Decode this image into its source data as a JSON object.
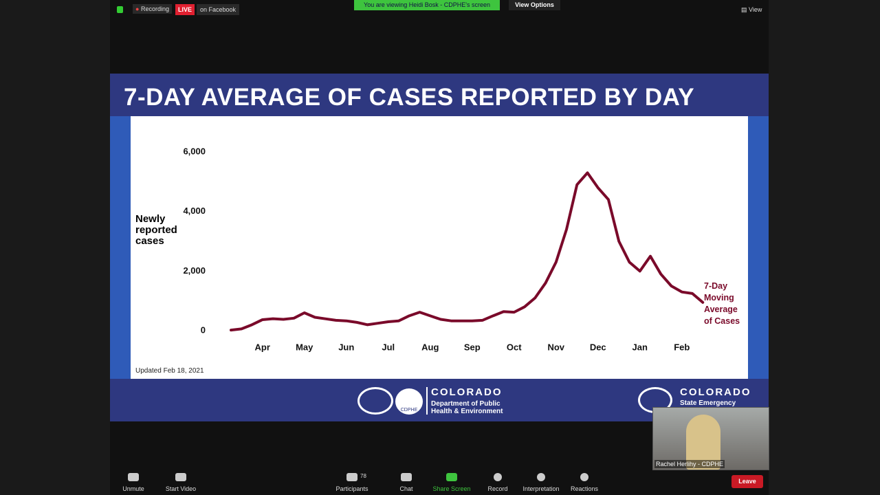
{
  "top_bar": {
    "recording": "Recording",
    "live": "LIVE",
    "live_target": "on Facebook",
    "viewing_banner": "You are viewing Heidi Bosk - CDPHE's screen",
    "view_options": "View Options",
    "view": "View"
  },
  "chart_data": {
    "type": "line",
    "title": "7-DAY AVERAGE OF CASES REPORTED BY DAY",
    "y_label": "Newly reported cases",
    "note": "Updated Feb 18, 2021",
    "categories": [
      null,
      null,
      null,
      "Apr",
      null,
      null,
      null,
      "May",
      null,
      null,
      null,
      "Jun",
      null,
      null,
      null,
      "Jul",
      null,
      null,
      null,
      "Aug",
      null,
      null,
      null,
      "Sep",
      null,
      null,
      null,
      "Oct",
      null,
      null,
      null,
      "Nov",
      null,
      null,
      null,
      "Dec",
      null,
      null,
      null,
      "Jan",
      null,
      null,
      null,
      "Feb",
      null,
      null
    ],
    "series": [
      {
        "name": "7-Day Moving Average of Cases",
        "color": "#7a0a2a",
        "values": [
          20,
          60,
          200,
          370,
          400,
          380,
          420,
          600,
          450,
          400,
          350,
          330,
          280,
          200,
          250,
          300,
          330,
          500,
          620,
          500,
          380,
          330,
          330,
          330,
          350,
          500,
          640,
          620,
          800,
          1100,
          1600,
          2300,
          3400,
          4900,
          5300,
          4800,
          4400,
          3000,
          2300,
          2000,
          2500,
          1900,
          1500,
          1300,
          1250,
          950
        ]
      }
    ],
    "ylim": [
      0,
      6700
    ],
    "yticks": [
      0,
      {
        "value": 2000,
        "label": "2,000"
      },
      {
        "value": 4000,
        "label": "4,000"
      },
      {
        "value": 6000,
        "label": "6,000"
      }
    ]
  },
  "slide_footer": {
    "cdphe_name": "COLORADO",
    "cdphe_dept": "Department of Public Health & Environment",
    "cdphe_badge": "CDPHE",
    "emergency_name": "COLORADO",
    "emergency_dept": "State Emergency"
  },
  "video_tile": {
    "name": "Rachel Herlihy - CDPHE"
  },
  "toolbar": {
    "unmute": "Unmute",
    "start_video": "Start Video",
    "participants": "Participants",
    "participant_count": "78",
    "chat": "Chat",
    "share_screen": "Share Screen",
    "record": "Record",
    "interpretation": "Interpretation",
    "reactions": "Reactions",
    "leave": "Leave"
  }
}
